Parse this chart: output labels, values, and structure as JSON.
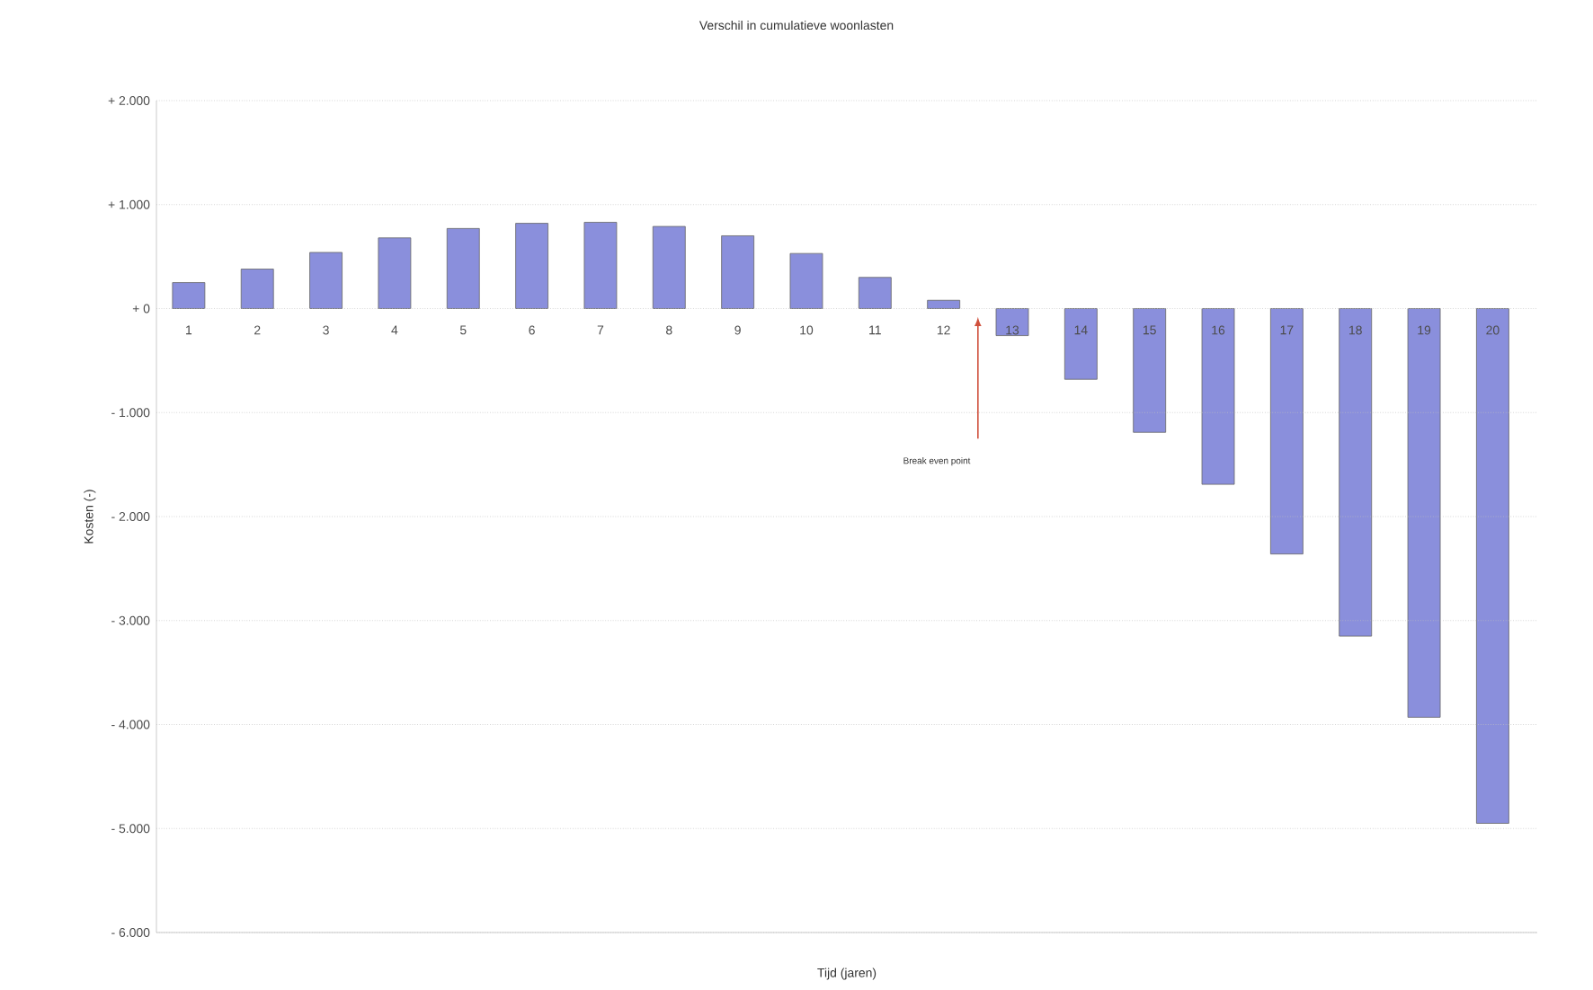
{
  "chart_data": {
    "type": "bar",
    "title": "Verschil in cumulatieve woonlasten",
    "xlabel": "Tijd (jaren)",
    "ylabel": "Kosten (-)",
    "categories": [
      "1",
      "2",
      "3",
      "4",
      "5",
      "6",
      "7",
      "8",
      "9",
      "10",
      "11",
      "12",
      "13",
      "14",
      "15",
      "16",
      "17",
      "18",
      "19",
      "20"
    ],
    "values": [
      250,
      380,
      540,
      680,
      770,
      820,
      830,
      790,
      700,
      530,
      300,
      80,
      -260,
      -680,
      -1190,
      -1690,
      -2360,
      -3150,
      -3930,
      -4950
    ],
    "color": "#8a8fdc",
    "grid": "y",
    "ylim": [
      -6000,
      2000
    ],
    "yticks": [
      {
        "value": 2000,
        "label": "+ 2.000"
      },
      {
        "value": 1000,
        "label": "+ 1.000"
      },
      {
        "value": 0,
        "label": "+ 0"
      },
      {
        "value": -1000,
        "label": "- 1.000"
      },
      {
        "value": -2000,
        "label": "- 2.000"
      },
      {
        "value": -3000,
        "label": "- 3.000"
      },
      {
        "value": -4000,
        "label": "- 4.000"
      },
      {
        "value": -5000,
        "label": "- 5.000"
      },
      {
        "value": -6000,
        "label": "- 6.000"
      }
    ],
    "annotations": [
      "Break even point"
    ]
  }
}
